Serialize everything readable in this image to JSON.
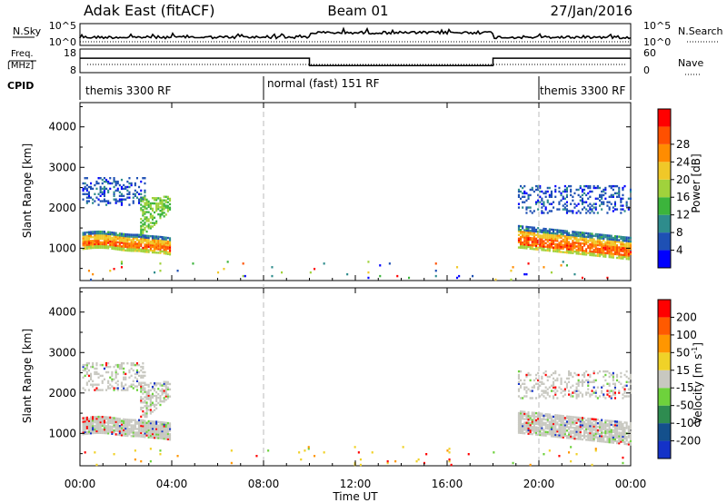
{
  "header": {
    "site": "Adak East (fitACF)",
    "beam": "Beam 01",
    "date": "27/Jan/2016"
  },
  "top_panel": {
    "left_label": "N.Sky",
    "right_label": "N.Search",
    "left_ticks": [
      "10^5",
      "10^0"
    ],
    "right_ticks": [
      "10^5",
      "10^0"
    ]
  },
  "freq_panel": {
    "left_label_line1": "Freq.",
    "left_label_line2": "[MHz]",
    "right_label": "Nave",
    "left_ticks": [
      "18",
      "8"
    ],
    "right_ticks": [
      "60",
      "0"
    ],
    "freq_segments": [
      {
        "from": 0,
        "to": 10,
        "level": 0.62
      },
      {
        "from": 10,
        "to": 18,
        "level": 0.28
      },
      {
        "from": 18,
        "to": 24,
        "level": 0.62
      }
    ]
  },
  "cpid": {
    "label": "CPID",
    "segments": [
      {
        "from": 0,
        "to": 8,
        "text": "themis 3300 RF"
      },
      {
        "from": 8,
        "to": 20,
        "text": "normal (fast) 151 RF"
      },
      {
        "from": 20,
        "to": 24,
        "text": "themis 3300 RF"
      }
    ]
  },
  "chart_data": [
    {
      "type": "heatmap",
      "name": "power",
      "ylabel": "Slant Range [km]",
      "yticks": [
        1000,
        2000,
        3000,
        4000
      ],
      "ylim": [
        200,
        4600
      ],
      "xlim": [
        0,
        24
      ],
      "colorbar": {
        "label": "Power [dB]",
        "ticks": [
          "4",
          "8",
          "12",
          "16",
          "20",
          "24",
          "28"
        ],
        "colors": [
          "#0000ff",
          "#1e50b4",
          "#2e8c8c",
          "#3cb43c",
          "#a0d23c",
          "#f0c828",
          "#ff8c00",
          "#ff5000",
          "#ff0000"
        ]
      }
    },
    {
      "type": "heatmap",
      "name": "velocity",
      "ylabel": "Slant Range [km]",
      "yticks": [
        1000,
        2000,
        3000,
        4000
      ],
      "ylim": [
        200,
        4600
      ],
      "xlim": [
        0,
        24
      ],
      "colorbar": {
        "label_main": "Velocity [m s",
        "label_sup": "-1",
        "label_end": "]",
        "ticks": [
          "200",
          "100",
          "50",
          "15",
          "-15",
          "-50",
          "-100",
          "-200"
        ],
        "colors": [
          "#1432c8",
          "#14508c",
          "#2e8c50",
          "#6ed23c",
          "#c8c8c0",
          "#f0d228",
          "#ff9600",
          "#ff5a00",
          "#ff0000"
        ]
      }
    }
  ],
  "xaxis": {
    "label": "Time UT",
    "ticks": [
      "00:00",
      "04:00",
      "08:00",
      "12:00",
      "16:00",
      "20:00",
      "00:00"
    ],
    "xlim": [
      0,
      24
    ]
  }
}
